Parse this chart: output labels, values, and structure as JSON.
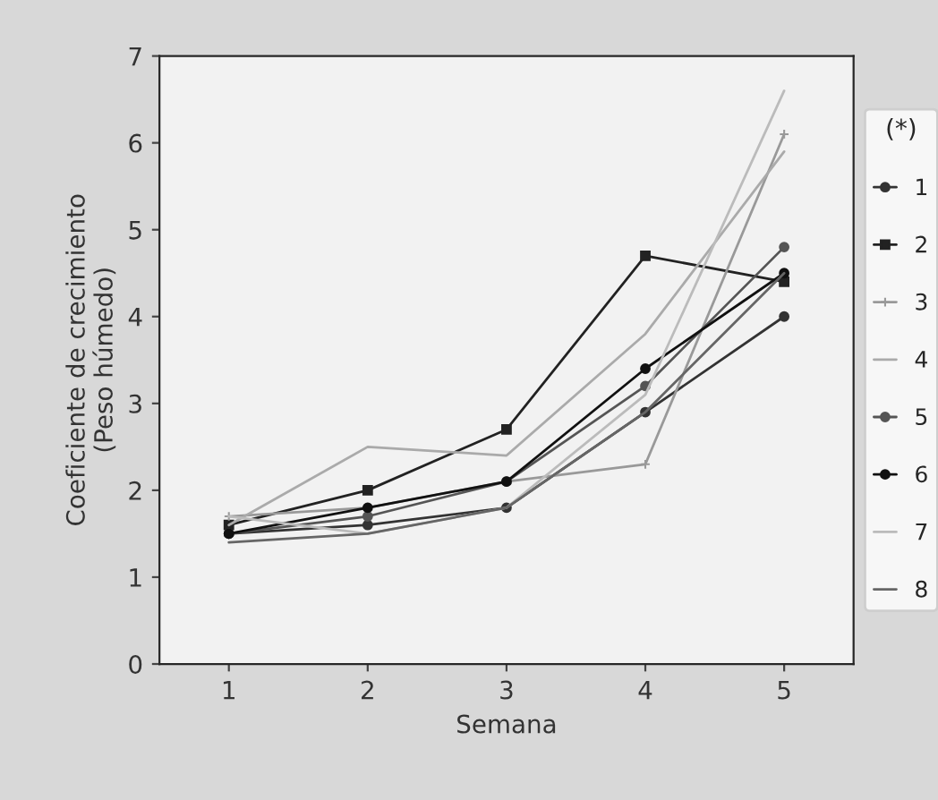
{
  "chart_data": {
    "type": "line",
    "xlabel": "Semana",
    "ylabel": "Coeficiente de crecimiento\n(Peso húmedo)",
    "legend_title": "(*)",
    "x": [
      1,
      2,
      3,
      4,
      5
    ],
    "xlim": [
      0.5,
      5.5
    ],
    "xticks": [
      1,
      2,
      3,
      4,
      5
    ],
    "ylim": [
      0,
      7
    ],
    "yticks": [
      0,
      1,
      2,
      3,
      4,
      5,
      6,
      7
    ],
    "grid": false,
    "legend": "right",
    "series": [
      {
        "name": "1",
        "color": "#333333",
        "marker": "circle",
        "values": [
          1.5,
          1.6,
          1.8,
          2.9,
          4.0
        ]
      },
      {
        "name": "2",
        "color": "#222222",
        "marker": "square",
        "values": [
          1.6,
          2.0,
          2.7,
          4.7,
          4.4
        ]
      },
      {
        "name": "3",
        "color": "#999999",
        "marker": "cross",
        "values": [
          1.7,
          1.8,
          2.1,
          2.3,
          6.1
        ]
      },
      {
        "name": "4",
        "color": "#aaaaaa",
        "marker": "none",
        "values": [
          1.6,
          2.5,
          2.4,
          3.8,
          5.9
        ]
      },
      {
        "name": "5",
        "color": "#555555",
        "marker": "circle",
        "values": [
          1.5,
          1.7,
          2.1,
          3.2,
          4.8
        ]
      },
      {
        "name": "6",
        "color": "#111111",
        "marker": "circle",
        "values": [
          1.5,
          1.8,
          2.1,
          3.4,
          4.5
        ]
      },
      {
        "name": "7",
        "color": "#bbbbbb",
        "marker": "none",
        "values": [
          1.7,
          1.5,
          1.8,
          3.1,
          6.6
        ]
      },
      {
        "name": "8",
        "color": "#666666",
        "marker": "none",
        "values": [
          1.4,
          1.5,
          1.8,
          2.9,
          4.5
        ]
      }
    ]
  }
}
